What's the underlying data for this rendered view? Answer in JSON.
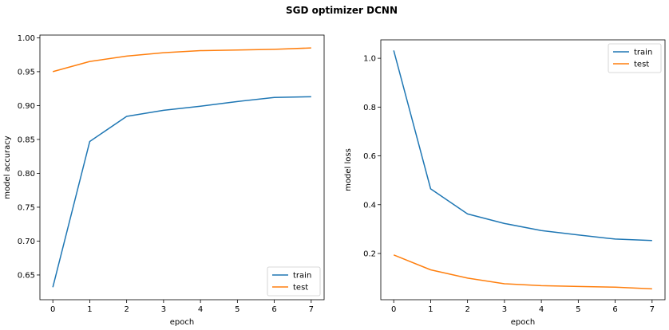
{
  "figure": {
    "title": "SGD optimizer DCNN"
  },
  "colors": {
    "train": "#1f77b4",
    "test": "#ff7f0e"
  },
  "chart_data": [
    {
      "type": "line",
      "xlabel": "epoch",
      "ylabel": "model accuracy",
      "x": [
        0,
        1,
        2,
        3,
        4,
        5,
        6,
        7
      ],
      "xticks": [
        0,
        1,
        2,
        3,
        4,
        5,
        6,
        7
      ],
      "yticks": [
        0.65,
        0.7,
        0.75,
        0.8,
        0.85,
        0.9,
        0.95,
        1.0
      ],
      "ytick_labels": [
        "0.65",
        "0.70",
        "0.75",
        "0.80",
        "0.85",
        "0.90",
        "0.95",
        "1.00"
      ],
      "xlim": [
        -0.35,
        7.35
      ],
      "ylim": [
        0.6135,
        1.004
      ],
      "legend": "lower right",
      "series": [
        {
          "name": "train",
          "values": [
            0.632,
            0.847,
            0.884,
            0.893,
            0.899,
            0.906,
            0.912,
            0.913
          ]
        },
        {
          "name": "test",
          "values": [
            0.95,
            0.965,
            0.973,
            0.978,
            0.981,
            0.982,
            0.983,
            0.985
          ]
        }
      ]
    },
    {
      "type": "line",
      "xlabel": "epoch",
      "ylabel": "model loss",
      "x": [
        0,
        1,
        2,
        3,
        4,
        5,
        6,
        7
      ],
      "xticks": [
        0,
        1,
        2,
        3,
        4,
        5,
        6,
        7
      ],
      "yticks": [
        0.2,
        0.4,
        0.6,
        0.8,
        1.0
      ],
      "ytick_labels": [
        "0.2",
        "0.4",
        "0.6",
        "0.8",
        "1.0"
      ],
      "xlim": [
        -0.35,
        7.35
      ],
      "ylim": [
        0.0105,
        1.0755
      ],
      "legend": "upper right",
      "series": [
        {
          "name": "train",
          "values": [
            1.032,
            0.465,
            0.362,
            0.323,
            0.294,
            0.276,
            0.259,
            0.253
          ]
        },
        {
          "name": "test",
          "values": [
            0.194,
            0.133,
            0.099,
            0.076,
            0.068,
            0.065,
            0.062,
            0.055
          ]
        }
      ]
    }
  ]
}
